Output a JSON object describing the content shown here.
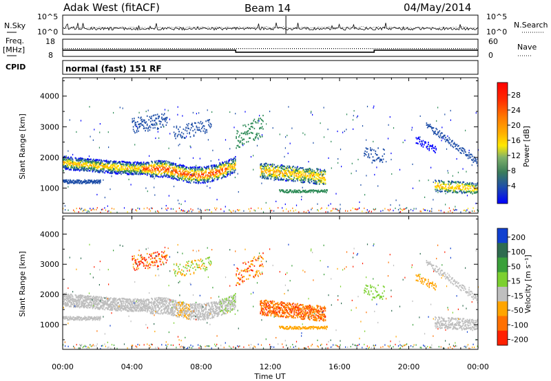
{
  "header": {
    "station": "Adak West (fitACF)",
    "beam": "Beam 14",
    "date": "04/May/2014"
  },
  "chart_data": [
    {
      "type": "line",
      "name": "nsky-nsearch-panel",
      "left_label": "N.Sky",
      "right_label": "N.Search",
      "left_ticks": [
        "10^5",
        "10^0"
      ],
      "right_ticks": [
        "10^5",
        "10^0"
      ],
      "x_range_hours": [
        0,
        24
      ],
      "log_range": [
        0,
        5
      ],
      "nsky_level_log": 1.4,
      "nsearch_level_log": 1.7
    },
    {
      "type": "line",
      "name": "freq-nave-panel",
      "left_label_top": "Freq.",
      "left_label_bottom": "[MHz]",
      "right_label": "Nave",
      "left_ticks": [
        "18",
        "8"
      ],
      "right_ticks": [
        "60",
        "0"
      ],
      "freq_range": [
        8,
        18
      ],
      "nave_range": [
        0,
        60
      ],
      "freq_segments": [
        {
          "x0": 0,
          "x1": 10,
          "freq": 11.5
        },
        {
          "x0": 10,
          "x1": 18,
          "freq": 10.2
        },
        {
          "x0": 18,
          "x1": 24,
          "freq": 11.5
        }
      ],
      "nave_level": 27
    },
    {
      "type": "text",
      "name": "cpid-panel",
      "label": "CPID",
      "text": "normal (fast) 151 RF"
    },
    {
      "type": "heatmap",
      "name": "power-panel",
      "ylabel": "Slant Range [km]",
      "yticks": [
        1000,
        2000,
        3000,
        4000
      ],
      "ylim": [
        180,
        4600
      ],
      "colorbar_label": "Power [dB]",
      "colorbar_ticks": [
        "28",
        "24",
        "20",
        "16",
        "12",
        "8",
        "4"
      ],
      "colorbar_colors": [
        "#ff0000",
        "#ff3300",
        "#ff7700",
        "#ffaa00",
        "#ffe600",
        "#2e8b57",
        "#1f4fa8",
        "#0000ff"
      ]
    },
    {
      "type": "heatmap",
      "name": "velocity-panel",
      "ylabel": "Slant Range [km]",
      "yticks": [
        1000,
        2000,
        3000,
        4000
      ],
      "ylim": [
        180,
        4600
      ],
      "colorbar_label": "Velocity [m s⁻¹]",
      "colorbar_ticks": [
        "200",
        "100",
        "50",
        "15",
        "-15",
        "-50",
        "-100",
        "-200"
      ],
      "colorbar_colors": [
        "#1040d0",
        "#2e6b4f",
        "#3aa03a",
        "#7cd030",
        "#bfbfbf",
        "#ffa500",
        "#ff7000",
        "#ff2000"
      ]
    }
  ],
  "x_axis": {
    "label": "Time UT",
    "ticks": [
      "00:00",
      "04:00",
      "08:00",
      "12:00",
      "16:00",
      "20:00",
      "00:00"
    ],
    "tick_hours": [
      0,
      4,
      8,
      12,
      16,
      20,
      24
    ]
  }
}
